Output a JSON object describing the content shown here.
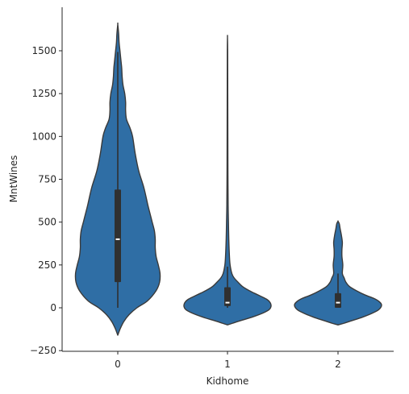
{
  "chart_data": {
    "type": "violin",
    "title": "",
    "xlabel": "Kidhome",
    "ylabel": "MntWines",
    "categories": [
      "0",
      "1",
      "2"
    ],
    "ylim": [
      -250,
      1750
    ],
    "yticks": [
      -250,
      0,
      250,
      500,
      750,
      1000,
      1250,
      1500
    ],
    "ytick_labels": [
      "−250",
      "0",
      "250",
      "500",
      "750",
      "1000",
      "1250",
      "1500"
    ],
    "grid": false,
    "legend": "none",
    "colors": {
      "fill": "#2f6ea5",
      "edge": "#3a3a3a",
      "box": "#303030",
      "median": "#ffffff"
    },
    "violins": [
      {
        "category": "0",
        "min": 0,
        "q1": 150,
        "median": 400,
        "q3": 690,
        "max": 1493,
        "whisker_low": 0,
        "whisker_high": 1493,
        "density_profile": [
          [
            -160,
            0.0
          ],
          [
            -120,
            0.06
          ],
          [
            -80,
            0.14
          ],
          [
            -40,
            0.26
          ],
          [
            0,
            0.44
          ],
          [
            40,
            0.68
          ],
          [
            100,
            0.88
          ],
          [
            150,
            0.96
          ],
          [
            200,
            0.97
          ],
          [
            250,
            0.93
          ],
          [
            300,
            0.88
          ],
          [
            350,
            0.86
          ],
          [
            400,
            0.86
          ],
          [
            450,
            0.84
          ],
          [
            500,
            0.79
          ],
          [
            550,
            0.74
          ],
          [
            600,
            0.69
          ],
          [
            700,
            0.6
          ],
          [
            800,
            0.48
          ],
          [
            900,
            0.4
          ],
          [
            1000,
            0.34
          ],
          [
            1050,
            0.28
          ],
          [
            1100,
            0.2
          ],
          [
            1150,
            0.18
          ],
          [
            1200,
            0.18
          ],
          [
            1250,
            0.16
          ],
          [
            1300,
            0.12
          ],
          [
            1350,
            0.1
          ],
          [
            1400,
            0.09
          ],
          [
            1450,
            0.07
          ],
          [
            1500,
            0.05
          ],
          [
            1550,
            0.03
          ],
          [
            1600,
            0.02
          ],
          [
            1655,
            0.0
          ]
        ]
      },
      {
        "category": "1",
        "min": 0,
        "q1": 10,
        "median": 30,
        "q3": 120,
        "max": 240,
        "whisker_low": 0,
        "whisker_high": 240,
        "density_profile": [
          [
            -100,
            0.0
          ],
          [
            -90,
            0.12
          ],
          [
            -75,
            0.3
          ],
          [
            -55,
            0.56
          ],
          [
            -30,
            0.82
          ],
          [
            -10,
            0.96
          ],
          [
            10,
            1.0
          ],
          [
            30,
            0.98
          ],
          [
            50,
            0.9
          ],
          [
            75,
            0.7
          ],
          [
            100,
            0.5
          ],
          [
            125,
            0.34
          ],
          [
            150,
            0.24
          ],
          [
            175,
            0.15
          ],
          [
            200,
            0.1
          ],
          [
            250,
            0.06
          ],
          [
            300,
            0.045
          ],
          [
            400,
            0.03
          ],
          [
            500,
            0.022
          ],
          [
            600,
            0.015
          ],
          [
            800,
            0.01
          ],
          [
            1000,
            0.008
          ],
          [
            1250,
            0.006
          ],
          [
            1500,
            0.004
          ],
          [
            1580,
            0.0
          ]
        ]
      },
      {
        "category": "2",
        "min": 0,
        "q1": 0,
        "median": 30,
        "q3": 85,
        "max": 200,
        "whisker_low": 0,
        "whisker_high": 200,
        "density_profile": [
          [
            -100,
            0.0
          ],
          [
            -90,
            0.14
          ],
          [
            -75,
            0.32
          ],
          [
            -55,
            0.56
          ],
          [
            -30,
            0.8
          ],
          [
            -10,
            0.94
          ],
          [
            15,
            1.0
          ],
          [
            35,
            0.95
          ],
          [
            55,
            0.82
          ],
          [
            75,
            0.62
          ],
          [
            100,
            0.42
          ],
          [
            125,
            0.26
          ],
          [
            150,
            0.18
          ],
          [
            175,
            0.14
          ],
          [
            200,
            0.1
          ],
          [
            250,
            0.11
          ],
          [
            300,
            0.09
          ],
          [
            340,
            0.09
          ],
          [
            380,
            0.1
          ],
          [
            420,
            0.08
          ],
          [
            460,
            0.05
          ],
          [
            490,
            0.03
          ],
          [
            505,
            0.0
          ]
        ]
      }
    ]
  }
}
